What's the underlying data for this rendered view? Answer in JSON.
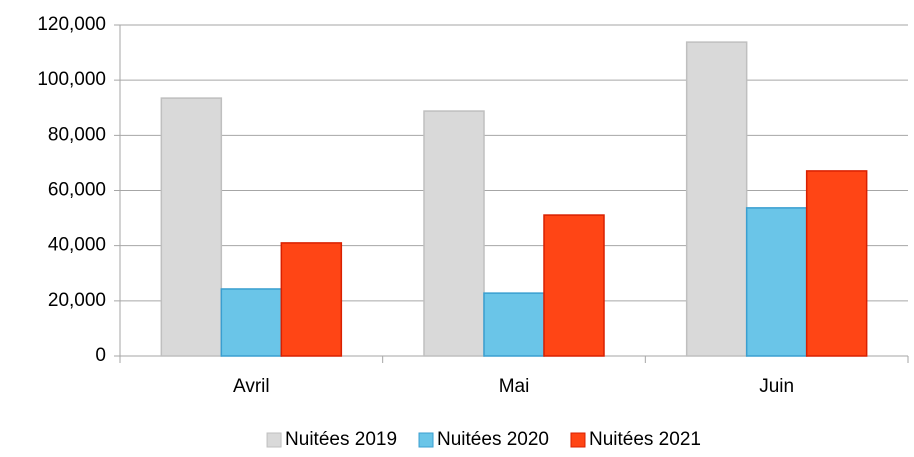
{
  "chart_data": {
    "type": "bar",
    "categories": [
      "Avril",
      "Mai",
      "Juin"
    ],
    "series": [
      {
        "name": "Nuitées 2019",
        "color": "#d9d9d9",
        "values": [
          93500,
          88800,
          113800
        ]
      },
      {
        "name": "Nuitées 2020",
        "color": "#6ac5e8",
        "values": [
          24300,
          22800,
          53700
        ]
      },
      {
        "name": "Nuitées 2021",
        "color": "#ff4515",
        "values": [
          41000,
          51100,
          67100
        ]
      }
    ],
    "ylim": [
      0,
      120000
    ],
    "yticks": [
      0,
      {
        "value": 20000,
        "label": "20,000"
      },
      {
        "value": 40000,
        "label": "40,000"
      },
      {
        "value": 60000,
        "label": "60,000"
      },
      {
        "value": 80000,
        "label": "80,000"
      },
      {
        "value": 100000,
        "label": "100,000"
      },
      {
        "value": 120000,
        "label": "120,000"
      }
    ],
    "grid": true,
    "legend": "bottom"
  }
}
